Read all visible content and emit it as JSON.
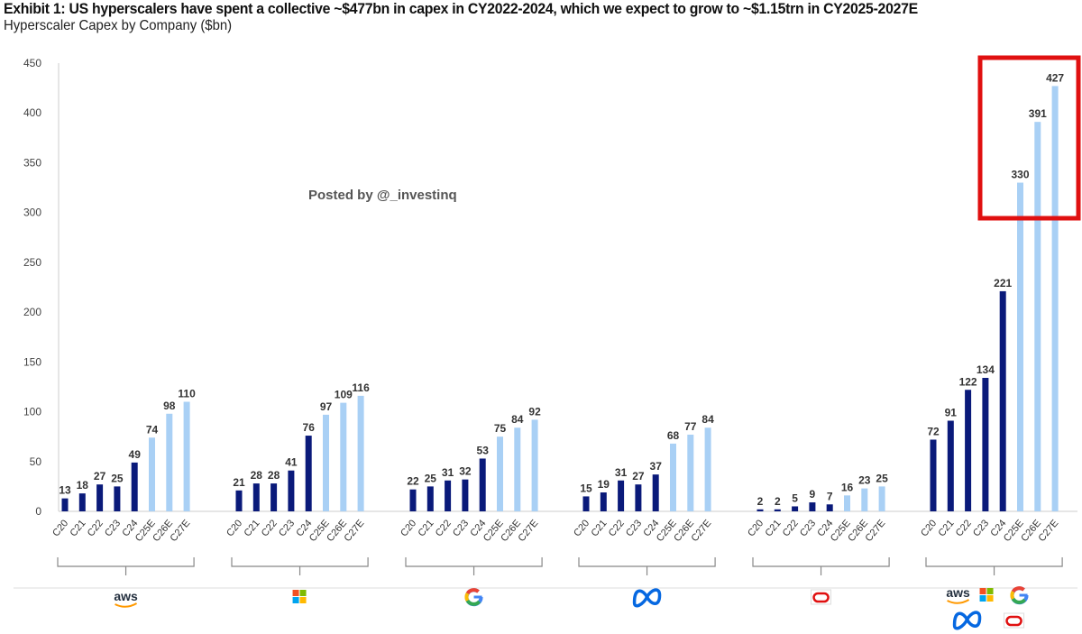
{
  "chart_data": {
    "type": "bar",
    "title": "Exhibit 1: US hyperscalers have spent a collective ~$477bn in capex in CY2022-2024, which we expect to grow to ~$1.15trn in CY2025-2027E",
    "subtitle": "Hyperscaler Capex by Company ($bn)",
    "categories": [
      "C20",
      "C21",
      "C22",
      "C23",
      "C24",
      "C25E",
      "C26E",
      "C27E"
    ],
    "ylim": [
      0,
      450
    ],
    "yticks": [
      0,
      50,
      100,
      150,
      200,
      250,
      300,
      350,
      400,
      450
    ],
    "grid": false,
    "colors": {
      "actual": "#0a1a7a",
      "estimate": "#a9d0f5",
      "highlight_box": "#e01010"
    },
    "estimate_from_index": 5,
    "groups": [
      {
        "company": "aws",
        "logos": [
          "aws-logo"
        ],
        "values": [
          13,
          18,
          27,
          25,
          49,
          74,
          98,
          110
        ]
      },
      {
        "company": "microsoft",
        "logos": [
          "microsoft-logo"
        ],
        "values": [
          21,
          28,
          28,
          41,
          76,
          97,
          109,
          116
        ]
      },
      {
        "company": "google",
        "logos": [
          "google-logo"
        ],
        "values": [
          22,
          25,
          31,
          32,
          53,
          75,
          84,
          92
        ]
      },
      {
        "company": "meta",
        "logos": [
          "meta-logo"
        ],
        "values": [
          15,
          19,
          31,
          27,
          37,
          68,
          77,
          84
        ]
      },
      {
        "company": "oracle",
        "logos": [
          "oracle-logo"
        ],
        "values": [
          2,
          2,
          5,
          9,
          7,
          16,
          23,
          25
        ]
      },
      {
        "company": "total",
        "logos": [
          "aws-logo",
          "microsoft-logo",
          "google-logo",
          "meta-logo",
          "oracle-logo"
        ],
        "values": [
          72,
          91,
          122,
          134,
          221,
          330,
          391,
          427
        ]
      }
    ],
    "annotation": "red box highlighting total C25E-C27E"
  },
  "watermark": "Posted by @_investinq",
  "logo_text": {
    "aws": "aws"
  }
}
